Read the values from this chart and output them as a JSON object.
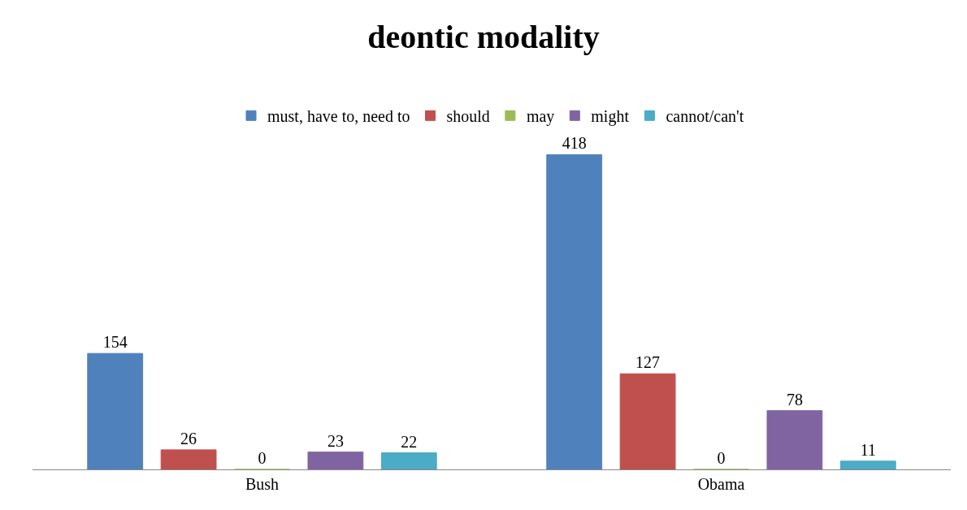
{
  "chart_data": {
    "type": "bar",
    "title": "deontic modality",
    "categories": [
      "Bush",
      "Obama"
    ],
    "series": [
      {
        "name": "must, have to, need to",
        "color": "#4f81bd",
        "values": [
          154,
          418
        ]
      },
      {
        "name": "should",
        "color": "#c0504d",
        "values": [
          26,
          127
        ]
      },
      {
        "name": "may",
        "color": "#9bbb59",
        "values": [
          0,
          0
        ]
      },
      {
        "name": "might",
        "color": "#8064a2",
        "values": [
          23,
          78
        ]
      },
      {
        "name": "cannot/can't",
        "color": "#4bacc6",
        "values": [
          22,
          11
        ]
      }
    ],
    "data_labels": true,
    "legend": "top"
  }
}
